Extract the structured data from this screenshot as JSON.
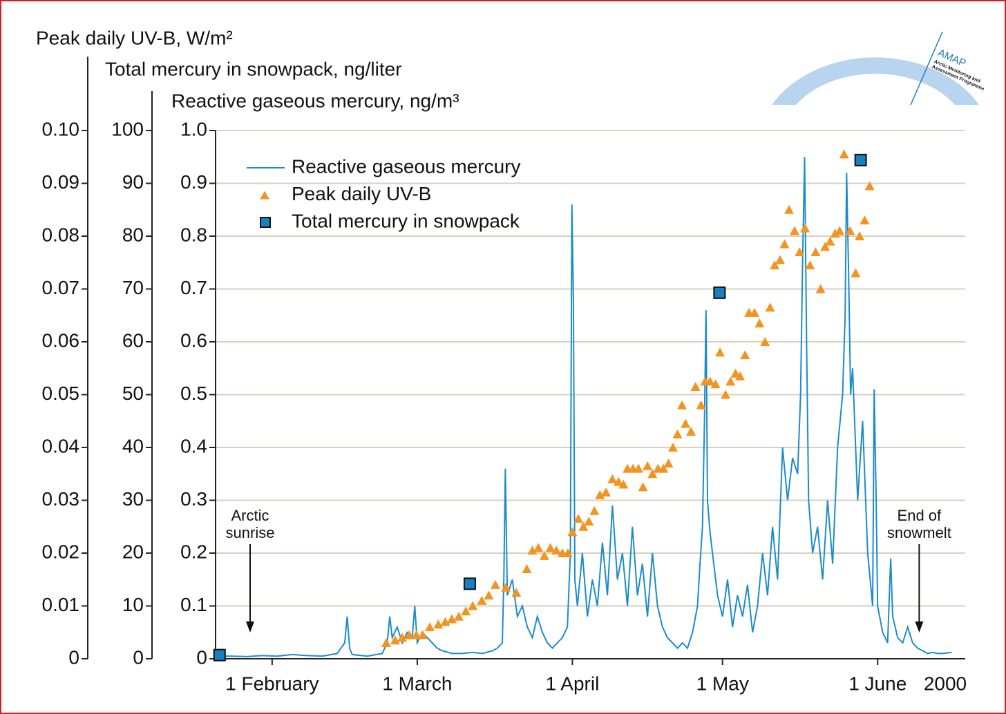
{
  "chart_data": {
    "type": "multi-axis-line-scatter",
    "axis_titles": {
      "y3": "Peak daily UV-B, W/m²",
      "y2": "Total mercury in snowpack, ng/liter",
      "y": "Reactive gaseous mercury, ng/m³"
    },
    "xlim": [
      20.7,
      170.5
    ],
    "xticks": [
      {
        "value": 32,
        "label": "1 February"
      },
      {
        "value": 61,
        "label": "1 March"
      },
      {
        "value": 92,
        "label": "1 April"
      },
      {
        "value": 122,
        "label": "1 May"
      },
      {
        "value": 153,
        "label": "1 June"
      }
    ],
    "x_axis_year": "2000",
    "ylim": [
      0,
      1
    ],
    "yticks": [
      0,
      0.1,
      0.2,
      0.3,
      0.4,
      0.5,
      0.6,
      0.7,
      0.8,
      0.9,
      {
        "value": 1,
        "label": "1.0"
      }
    ],
    "y2lim": [
      0,
      100
    ],
    "y2ticks": [
      0,
      10,
      20,
      30,
      40,
      50,
      60,
      70,
      80,
      90,
      100
    ],
    "y3lim": [
      0,
      0.1
    ],
    "y3ticks": [
      0,
      0.01,
      0.02,
      0.03,
      0.04,
      0.05,
      0.06,
      0.07,
      0.08,
      0.09,
      {
        "value": 0.1,
        "label": "0.10"
      }
    ],
    "grid": true,
    "series": [
      {
        "name": "Reactive gaseous mercury",
        "kind": "line",
        "axis": "y",
        "color": "#1a8ccc",
        "x": [
          21,
          24,
          27,
          30,
          33,
          36,
          39,
          42,
          45,
          46.5,
          47,
          47.5,
          48,
          51,
          54,
          55,
          55.5,
          56,
          57,
          58,
          59,
          60,
          60.5,
          61,
          62,
          63,
          64,
          65,
          66,
          68,
          70,
          72,
          74,
          76,
          77,
          78,
          78.3,
          78.6,
          79,
          80,
          81,
          82,
          83,
          84,
          85,
          86,
          87,
          88,
          89,
          90,
          91,
          91.6,
          91.9,
          92.2,
          92.5,
          93,
          94,
          95,
          96,
          97,
          98,
          99,
          100,
          101,
          102,
          103,
          104,
          105,
          106,
          107,
          108,
          109,
          110,
          111,
          112,
          113,
          114,
          115,
          116,
          117,
          117.5,
          118,
          118.4,
          118.7,
          119,
          119.5,
          120,
          121,
          122,
          123,
          124,
          125,
          126,
          127,
          128,
          129,
          130,
          131,
          132,
          133,
          134,
          135,
          136,
          137,
          137.6,
          138,
          138.4,
          138.8,
          139.2,
          140,
          141,
          142,
          143,
          144,
          145,
          146,
          146.5,
          146.8,
          147.2,
          147.6,
          148,
          149,
          150,
          151,
          152,
          152.3,
          152.7,
          153,
          154,
          155,
          155.6,
          156,
          157,
          158,
          159,
          160,
          161,
          162,
          163,
          164,
          165,
          166,
          167.8
        ],
        "values": [
          0.005,
          0.005,
          0.004,
          0.006,
          0.005,
          0.008,
          0.006,
          0.005,
          0.01,
          0.03,
          0.08,
          0.02,
          0.008,
          0.005,
          0.01,
          0.03,
          0.08,
          0.04,
          0.06,
          0.03,
          0.05,
          0.04,
          0.1,
          0.03,
          0.05,
          0.04,
          0.03,
          0.02,
          0.015,
          0.01,
          0.01,
          0.012,
          0.01,
          0.015,
          0.02,
          0.03,
          0.15,
          0.36,
          0.12,
          0.15,
          0.08,
          0.1,
          0.06,
          0.04,
          0.08,
          0.05,
          0.03,
          0.02,
          0.03,
          0.04,
          0.06,
          0.2,
          0.86,
          0.68,
          0.15,
          0.1,
          0.2,
          0.08,
          0.15,
          0.1,
          0.22,
          0.12,
          0.29,
          0.15,
          0.2,
          0.1,
          0.25,
          0.12,
          0.18,
          0.08,
          0.2,
          0.1,
          0.06,
          0.04,
          0.03,
          0.02,
          0.03,
          0.02,
          0.05,
          0.1,
          0.18,
          0.25,
          0.45,
          0.66,
          0.3,
          0.24,
          0.2,
          0.12,
          0.08,
          0.15,
          0.06,
          0.12,
          0.08,
          0.14,
          0.05,
          0.1,
          0.2,
          0.12,
          0.25,
          0.15,
          0.4,
          0.3,
          0.38,
          0.35,
          0.5,
          0.75,
          0.95,
          0.6,
          0.3,
          0.2,
          0.25,
          0.15,
          0.3,
          0.18,
          0.4,
          0.5,
          0.65,
          0.92,
          0.73,
          0.5,
          0.55,
          0.3,
          0.45,
          0.2,
          0.1,
          0.51,
          0.3,
          0.1,
          0.05,
          0.03,
          0.19,
          0.08,
          0.04,
          0.03,
          0.06,
          0.03,
          0.02,
          0.015,
          0.01,
          0.012,
          0.01,
          0.01,
          0.012
        ]
      },
      {
        "name": "Peak daily UV-B",
        "kind": "triangle",
        "axis": "y3",
        "color": "#f39320",
        "x": [
          54.8,
          56.6,
          58.0,
          59.4,
          60.8,
          62.1,
          63.5,
          65.2,
          66.6,
          67.9,
          69.3,
          70.7,
          72.1,
          73.9,
          75.3,
          76.6,
          78.7,
          80.8,
          82.9,
          84.0,
          85.2,
          86.4,
          87.6,
          88.8,
          90.0,
          91.1,
          92.0,
          93.2,
          94.2,
          95.3,
          96.4,
          97.5,
          98.7,
          100.0,
          101.2,
          102.2,
          103.0,
          104.1,
          105.2,
          106.1,
          107.0,
          108.0,
          109.1,
          110.2,
          111.2,
          112.1,
          113.0,
          113.9,
          114.6,
          115.7,
          116.6,
          117.7,
          118.5,
          119.5,
          120.6,
          121.5,
          122.6,
          123.6,
          124.6,
          125.5,
          126.5,
          127.3,
          128.4,
          129.4,
          130.5,
          131.5,
          132.4,
          133.5,
          134.4,
          135.3,
          136.4,
          137.4,
          138.5,
          139.5,
          140.6,
          141.6,
          142.5,
          143.5,
          144.5,
          145.4,
          146.3,
          147.5,
          148.6,
          149.4,
          150.4,
          151.4
        ],
        "values": [
          0.003,
          0.0035,
          0.004,
          0.0045,
          0.0045,
          0.0045,
          0.006,
          0.0065,
          0.007,
          0.0075,
          0.008,
          0.009,
          0.01,
          0.011,
          0.012,
          0.014,
          0.0135,
          0.0125,
          0.017,
          0.0205,
          0.021,
          0.0195,
          0.021,
          0.0205,
          0.02,
          0.02,
          0.024,
          0.0265,
          0.025,
          0.026,
          0.028,
          0.031,
          0.0315,
          0.034,
          0.0335,
          0.033,
          0.036,
          0.036,
          0.036,
          0.0325,
          0.0365,
          0.035,
          0.036,
          0.036,
          0.037,
          0.04,
          0.0425,
          0.048,
          0.0445,
          0.043,
          0.0515,
          0.048,
          0.0525,
          0.0525,
          0.052,
          0.058,
          0.05,
          0.0525,
          0.054,
          0.0535,
          0.0575,
          0.0655,
          0.0655,
          0.0635,
          0.06,
          0.0665,
          0.0745,
          0.0755,
          0.0785,
          0.085,
          0.081,
          0.077,
          0.0815,
          0.0745,
          0.077,
          0.07,
          0.078,
          0.079,
          0.0805,
          0.081,
          0.0955,
          0.081,
          0.073,
          0.08,
          0.083,
          0.0895
        ]
      },
      {
        "name": "Total mercury in snowpack",
        "kind": "square",
        "axis": "y2",
        "color": "#1a7fc0",
        "x": [
          21.5,
          71.5,
          121.4,
          149.6
        ],
        "values": [
          0.7,
          14.2,
          69.3,
          94.4
        ]
      }
    ],
    "annotations": [
      {
        "lines": [
          "Arctic",
          "sunrise"
        ],
        "x": 27.6
      },
      {
        "lines": [
          "End of",
          "snowmelt"
        ],
        "x": 161.3
      }
    ],
    "logo": {
      "name": "AMAP",
      "lines": [
        "Arctic Monitoring and",
        "Assessment Programme"
      ]
    }
  }
}
